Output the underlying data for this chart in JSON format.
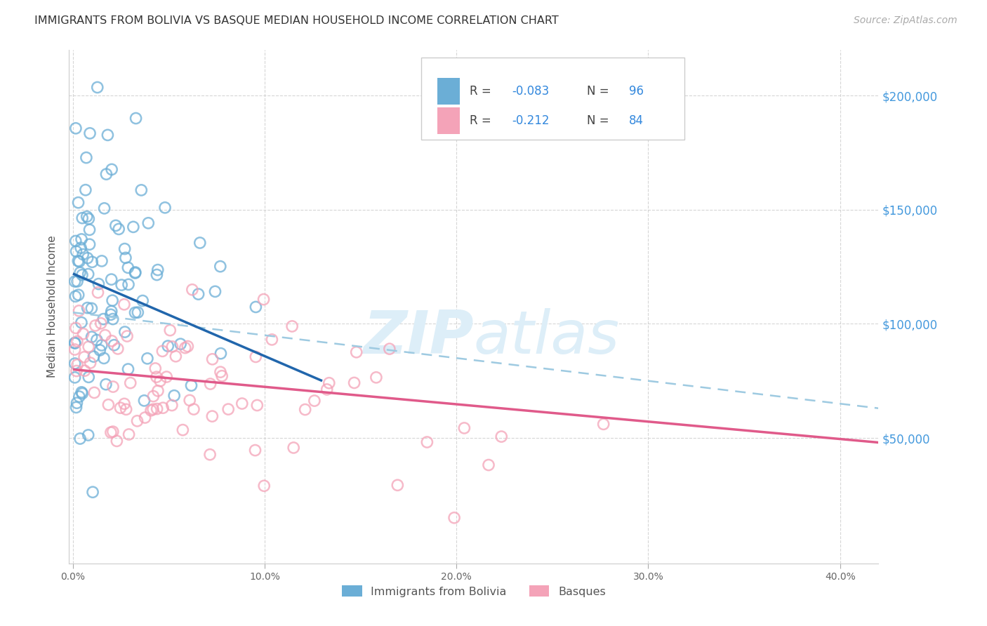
{
  "title": "IMMIGRANTS FROM BOLIVIA VS BASQUE MEDIAN HOUSEHOLD INCOME CORRELATION CHART",
  "source": "Source: ZipAtlas.com",
  "ylabel": "Median Household Income",
  "ytick_labels": [
    "$50,000",
    "$100,000",
    "$150,000",
    "$200,000"
  ],
  "ytick_values": [
    50000,
    100000,
    150000,
    200000
  ],
  "ylim": [
    -5000,
    220000
  ],
  "xlim": [
    -0.002,
    0.42
  ],
  "color_blue": "#6baed6",
  "color_pink": "#f4a3b8",
  "color_blue_line": "#2166ac",
  "color_pink_line": "#e05a8a",
  "color_dashed": "#9ecae1",
  "watermark_color": "#ddeef8",
  "title_fontsize": 11.5,
  "source_fontsize": 10,
  "legend_fontsize": 12,
  "background_color": "#ffffff",
  "seed": 42,
  "bolivia_n": 96,
  "basque_n": 84,
  "blue_line_x0": 0.0,
  "blue_line_y0": 122000,
  "blue_line_x1": 0.13,
  "blue_line_y1": 75000,
  "dashed_line_x0": 0.0,
  "dashed_line_y0": 105000,
  "dashed_line_x1": 0.42,
  "dashed_line_y1": 63000,
  "pink_line_x0": 0.0,
  "pink_line_y0": 80000,
  "pink_line_x1": 0.42,
  "pink_line_y1": 48000
}
